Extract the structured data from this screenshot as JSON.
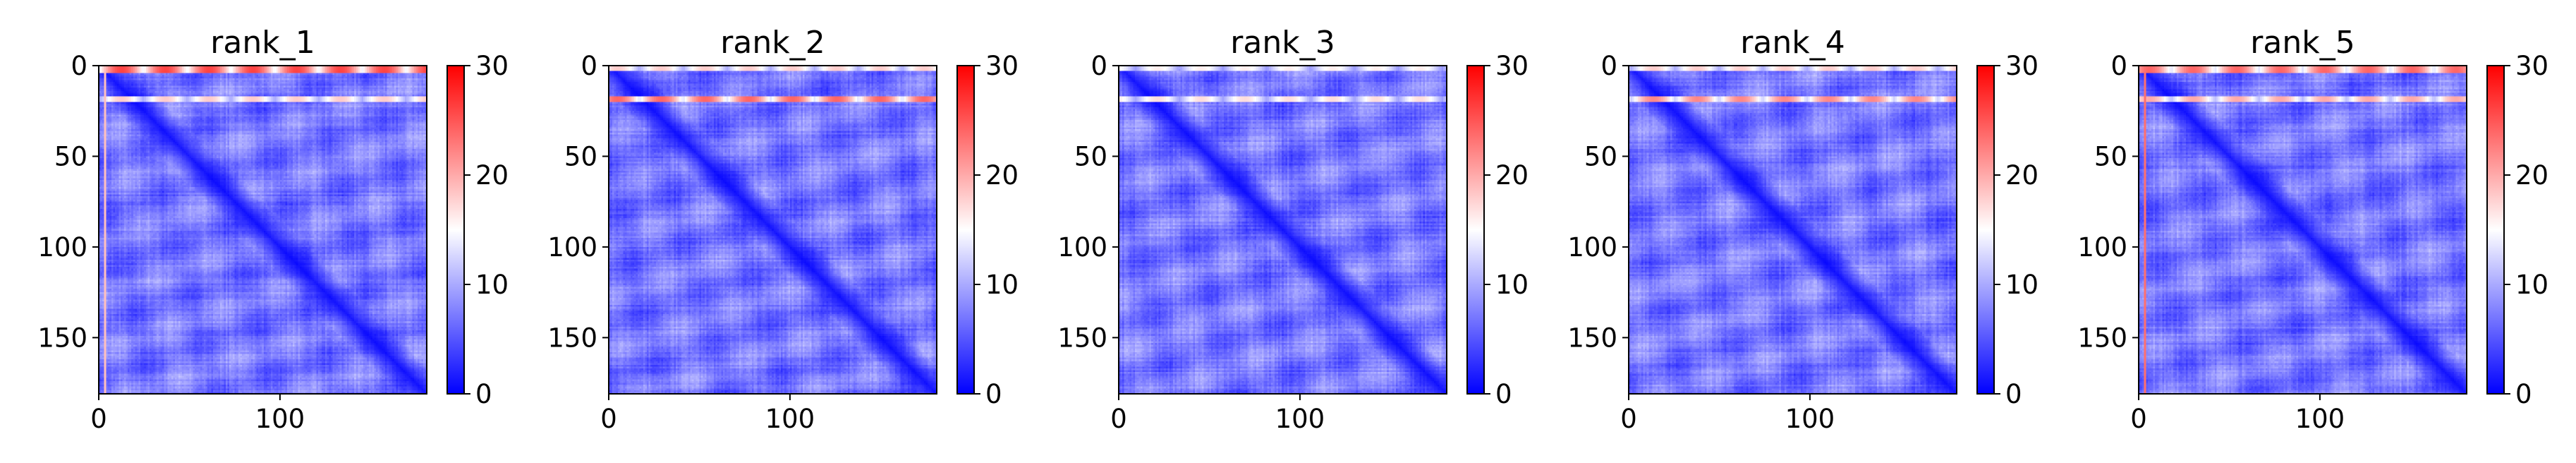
{
  "chart_data": [
    {
      "type": "heatmap",
      "title": "rank_1",
      "n": 181,
      "xlim": [
        0,
        181
      ],
      "ylim": [
        181,
        0
      ],
      "xticks": [
        0,
        100
      ],
      "yticks": [
        0,
        50,
        100,
        150
      ],
      "colorbar": {
        "min": 0,
        "max": 30,
        "ticks": [
          0,
          10,
          20,
          30
        ]
      },
      "colormap": "bwr",
      "features": {
        "diagonal": "near-zero distance along the main diagonal",
        "high_rows": [
          [
            0,
            3,
            26
          ],
          [
            17,
            19,
            18
          ]
        ],
        "background_mean": 7
      }
    },
    {
      "type": "heatmap",
      "title": "rank_2",
      "n": 181,
      "xlim": [
        0,
        181
      ],
      "ylim": [
        181,
        0
      ],
      "xticks": [
        0,
        100
      ],
      "yticks": [
        0,
        50,
        100,
        150
      ],
      "colorbar": {
        "min": 0,
        "max": 30,
        "ticks": [
          0,
          10,
          20,
          30
        ]
      },
      "colormap": "bwr",
      "features": {
        "diagonal": "near-zero distance along the main diagonal",
        "high_rows": [
          [
            0,
            2,
            18
          ],
          [
            17,
            19,
            24
          ]
        ],
        "background_mean": 7
      }
    },
    {
      "type": "heatmap",
      "title": "rank_3",
      "n": 181,
      "xlim": [
        0,
        181
      ],
      "ylim": [
        181,
        0
      ],
      "xticks": [
        0,
        100
      ],
      "yticks": [
        0,
        50,
        100,
        150
      ],
      "colorbar": {
        "min": 0,
        "max": 30,
        "ticks": [
          0,
          10,
          20,
          30
        ]
      },
      "colormap": "bwr",
      "features": {
        "diagonal": "near-zero distance along the main diagonal",
        "high_rows": [
          [
            0,
            2,
            16
          ],
          [
            17,
            19,
            17
          ]
        ],
        "background_mean": 7
      }
    },
    {
      "type": "heatmap",
      "title": "rank_4",
      "n": 181,
      "xlim": [
        0,
        181
      ],
      "ylim": [
        181,
        0
      ],
      "xticks": [
        0,
        100
      ],
      "yticks": [
        0,
        50,
        100,
        150
      ],
      "colorbar": {
        "min": 0,
        "max": 30,
        "ticks": [
          0,
          10,
          20,
          30
        ]
      },
      "colormap": "bwr",
      "features": {
        "diagonal": "near-zero distance along the main diagonal",
        "high_rows": [
          [
            0,
            2,
            18
          ],
          [
            17,
            19,
            22
          ]
        ],
        "background_mean": 7
      }
    },
    {
      "type": "heatmap",
      "title": "rank_5",
      "n": 181,
      "xlim": [
        0,
        181
      ],
      "ylim": [
        181,
        0
      ],
      "xticks": [
        0,
        100
      ],
      "yticks": [
        0,
        50,
        100,
        150
      ],
      "colorbar": {
        "min": 0,
        "max": 30,
        "ticks": [
          0,
          10,
          20,
          30
        ]
      },
      "colormap": "bwr",
      "features": {
        "diagonal": "near-zero distance along the main diagonal",
        "high_rows": [
          [
            0,
            3,
            24
          ],
          [
            17,
            19,
            20
          ]
        ],
        "background_mean": 7
      }
    }
  ]
}
